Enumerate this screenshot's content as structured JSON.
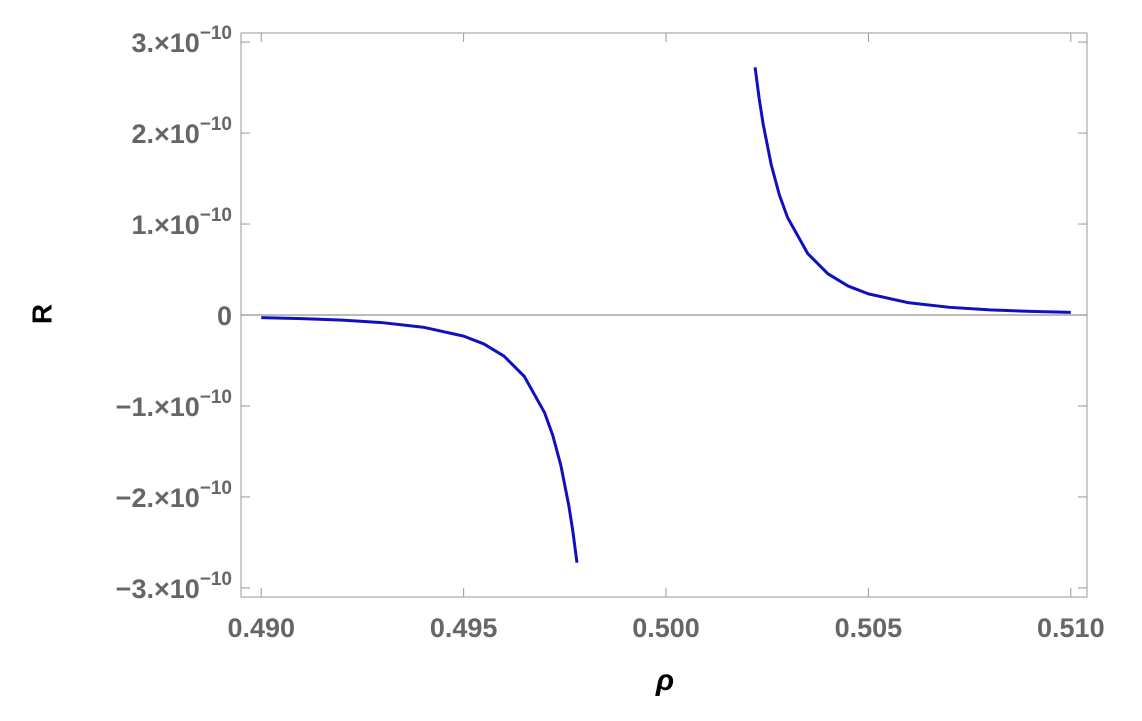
{
  "chart_data": {
    "type": "line",
    "xlabel": "ρ",
    "ylabel": "R",
    "x": [
      0.49,
      0.491,
      0.492,
      0.493,
      0.494,
      0.495,
      0.4955,
      0.496,
      0.4965,
      0.497,
      0.4972,
      0.4974,
      0.4976,
      0.4977,
      0.4978,
      0.5,
      0.5022,
      0.5023,
      0.5024,
      0.5026,
      0.5028,
      0.503,
      0.5035,
      0.504,
      0.5045,
      0.505,
      0.506,
      0.507,
      0.508,
      0.509,
      0.51
    ],
    "series": [
      {
        "color": "#1010c0",
        "values": [
          -2.9e-12,
          -3.98e-12,
          -5.66e-12,
          -8.45e-12,
          -1.343e-11,
          -2.32e-11,
          -3.18e-11,
          -4.53e-11,
          -6.76e-11,
          -1.074e-10,
          -1.321e-10,
          -1.65e-10,
          -2.098e-10,
          -2.383e-10,
          -2.723e-10,
          null,
          2.723e-10,
          2.383e-10,
          2.098e-10,
          1.65e-10,
          1.321e-10,
          1.074e-10,
          6.76e-11,
          4.53e-11,
          3.18e-11,
          2.32e-11,
          1.343e-11,
          8.45e-12,
          5.66e-12,
          3.98e-12,
          2.9e-12
        ]
      }
    ],
    "xlim": [
      0.4895,
      0.5104
    ],
    "xticks": [
      {
        "value": 0.49,
        "label": "0.490"
      },
      {
        "value": 0.495,
        "label": "0.495"
      },
      {
        "value": 0.5,
        "label": "0.500"
      },
      {
        "value": 0.505,
        "label": "0.505"
      },
      {
        "value": 0.51,
        "label": "0.510"
      }
    ],
    "ylim": [
      -3.1e-10,
      3.1e-10
    ],
    "yticks": [
      {
        "value": -3e-10,
        "label": "−3.×10",
        "exponent": "−10"
      },
      {
        "value": -2e-10,
        "label": "−2.×10",
        "exponent": "−10"
      },
      {
        "value": -1e-10,
        "label": "−1.×10",
        "exponent": "−10"
      },
      0,
      {
        "value": 1e-10,
        "label": "1.×10",
        "exponent": "−10"
      },
      {
        "value": 2e-10,
        "label": "2.×10",
        "exponent": "−10"
      },
      {
        "value": 3e-10,
        "label": "3.×10",
        "exponent": "−10"
      }
    ]
  }
}
